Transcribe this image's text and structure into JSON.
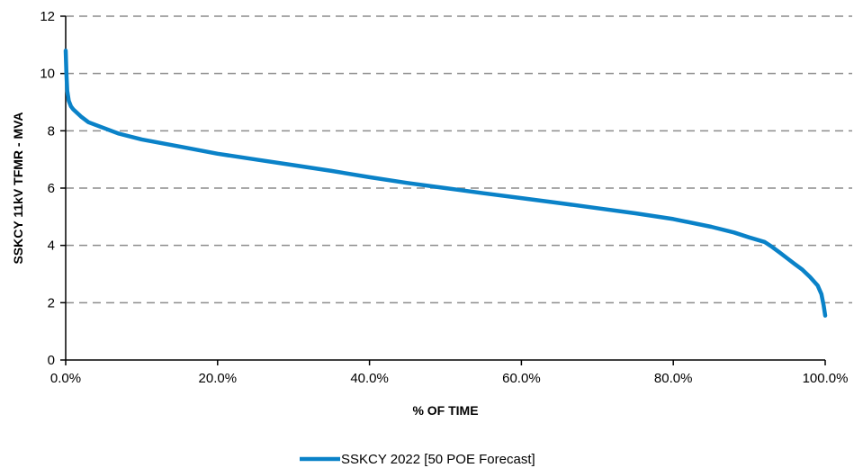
{
  "chart_data": {
    "type": "line",
    "title": "",
    "xlabel": "% OF TIME",
    "ylabel": "SSKCY 11kV TFMR - MVA",
    "xlim": [
      0,
      100
    ],
    "ylim": [
      0,
      12
    ],
    "x_ticks": [
      0,
      20,
      40,
      60,
      80,
      100
    ],
    "x_tick_labels": [
      "0.0%",
      "20.0%",
      "40.0%",
      "60.0%",
      "80.0%",
      "100.0%"
    ],
    "y_ticks": [
      0,
      2,
      4,
      6,
      8,
      10,
      12
    ],
    "y_tick_labels": [
      "0",
      "2",
      "4",
      "6",
      "8",
      "10",
      "12"
    ],
    "grid": "horizontal-dashed",
    "legend": "bottom-center",
    "series": [
      {
        "name": "SSKCY 2022  [50 POE Forecast]",
        "color": "#0a82c8",
        "x": [
          0,
          0.1,
          0.2,
          0.4,
          0.7,
          1,
          2,
          3,
          5,
          7,
          10,
          15,
          20,
          25,
          30,
          35,
          40,
          45,
          50,
          55,
          60,
          65,
          70,
          75,
          80,
          85,
          88,
          90,
          92,
          93,
          94,
          95,
          96,
          97,
          98,
          99,
          99.5,
          99.8,
          100
        ],
        "y": [
          10.8,
          10.0,
          9.4,
          9.05,
          8.85,
          8.75,
          8.5,
          8.3,
          8.1,
          7.9,
          7.7,
          7.45,
          7.2,
          7.0,
          6.8,
          6.6,
          6.38,
          6.18,
          6.0,
          5.82,
          5.65,
          5.48,
          5.3,
          5.12,
          4.92,
          4.65,
          4.45,
          4.28,
          4.12,
          3.95,
          3.75,
          3.55,
          3.35,
          3.15,
          2.9,
          2.6,
          2.3,
          1.9,
          1.55
        ]
      }
    ]
  }
}
